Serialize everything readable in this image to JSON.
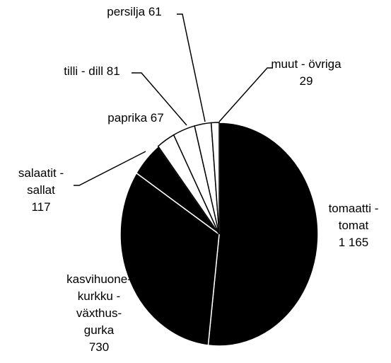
{
  "chart_data": {
    "type": "pie",
    "categories": [
      [
        "tomaatti -",
        "tomat"
      ],
      [
        "kasvihuone-",
        "kurkku -",
        "växthus-",
        "gurka"
      ],
      [
        "salaatit -",
        "sallat"
      ],
      [
        "paprika"
      ],
      [
        "tilli  - dill"
      ],
      [
        "persilja"
      ],
      [
        "muut - övriga"
      ]
    ],
    "values": [
      1165,
      730,
      117,
      67,
      81,
      61,
      29
    ],
    "value_labels": [
      "1 165",
      "730",
      "117",
      "67",
      "81",
      "61",
      "29"
    ],
    "colors": [
      "#000000",
      "#000000",
      "#000000",
      "#ffffff",
      "#ffffff",
      "#ffffff",
      "#ffffff"
    ]
  }
}
